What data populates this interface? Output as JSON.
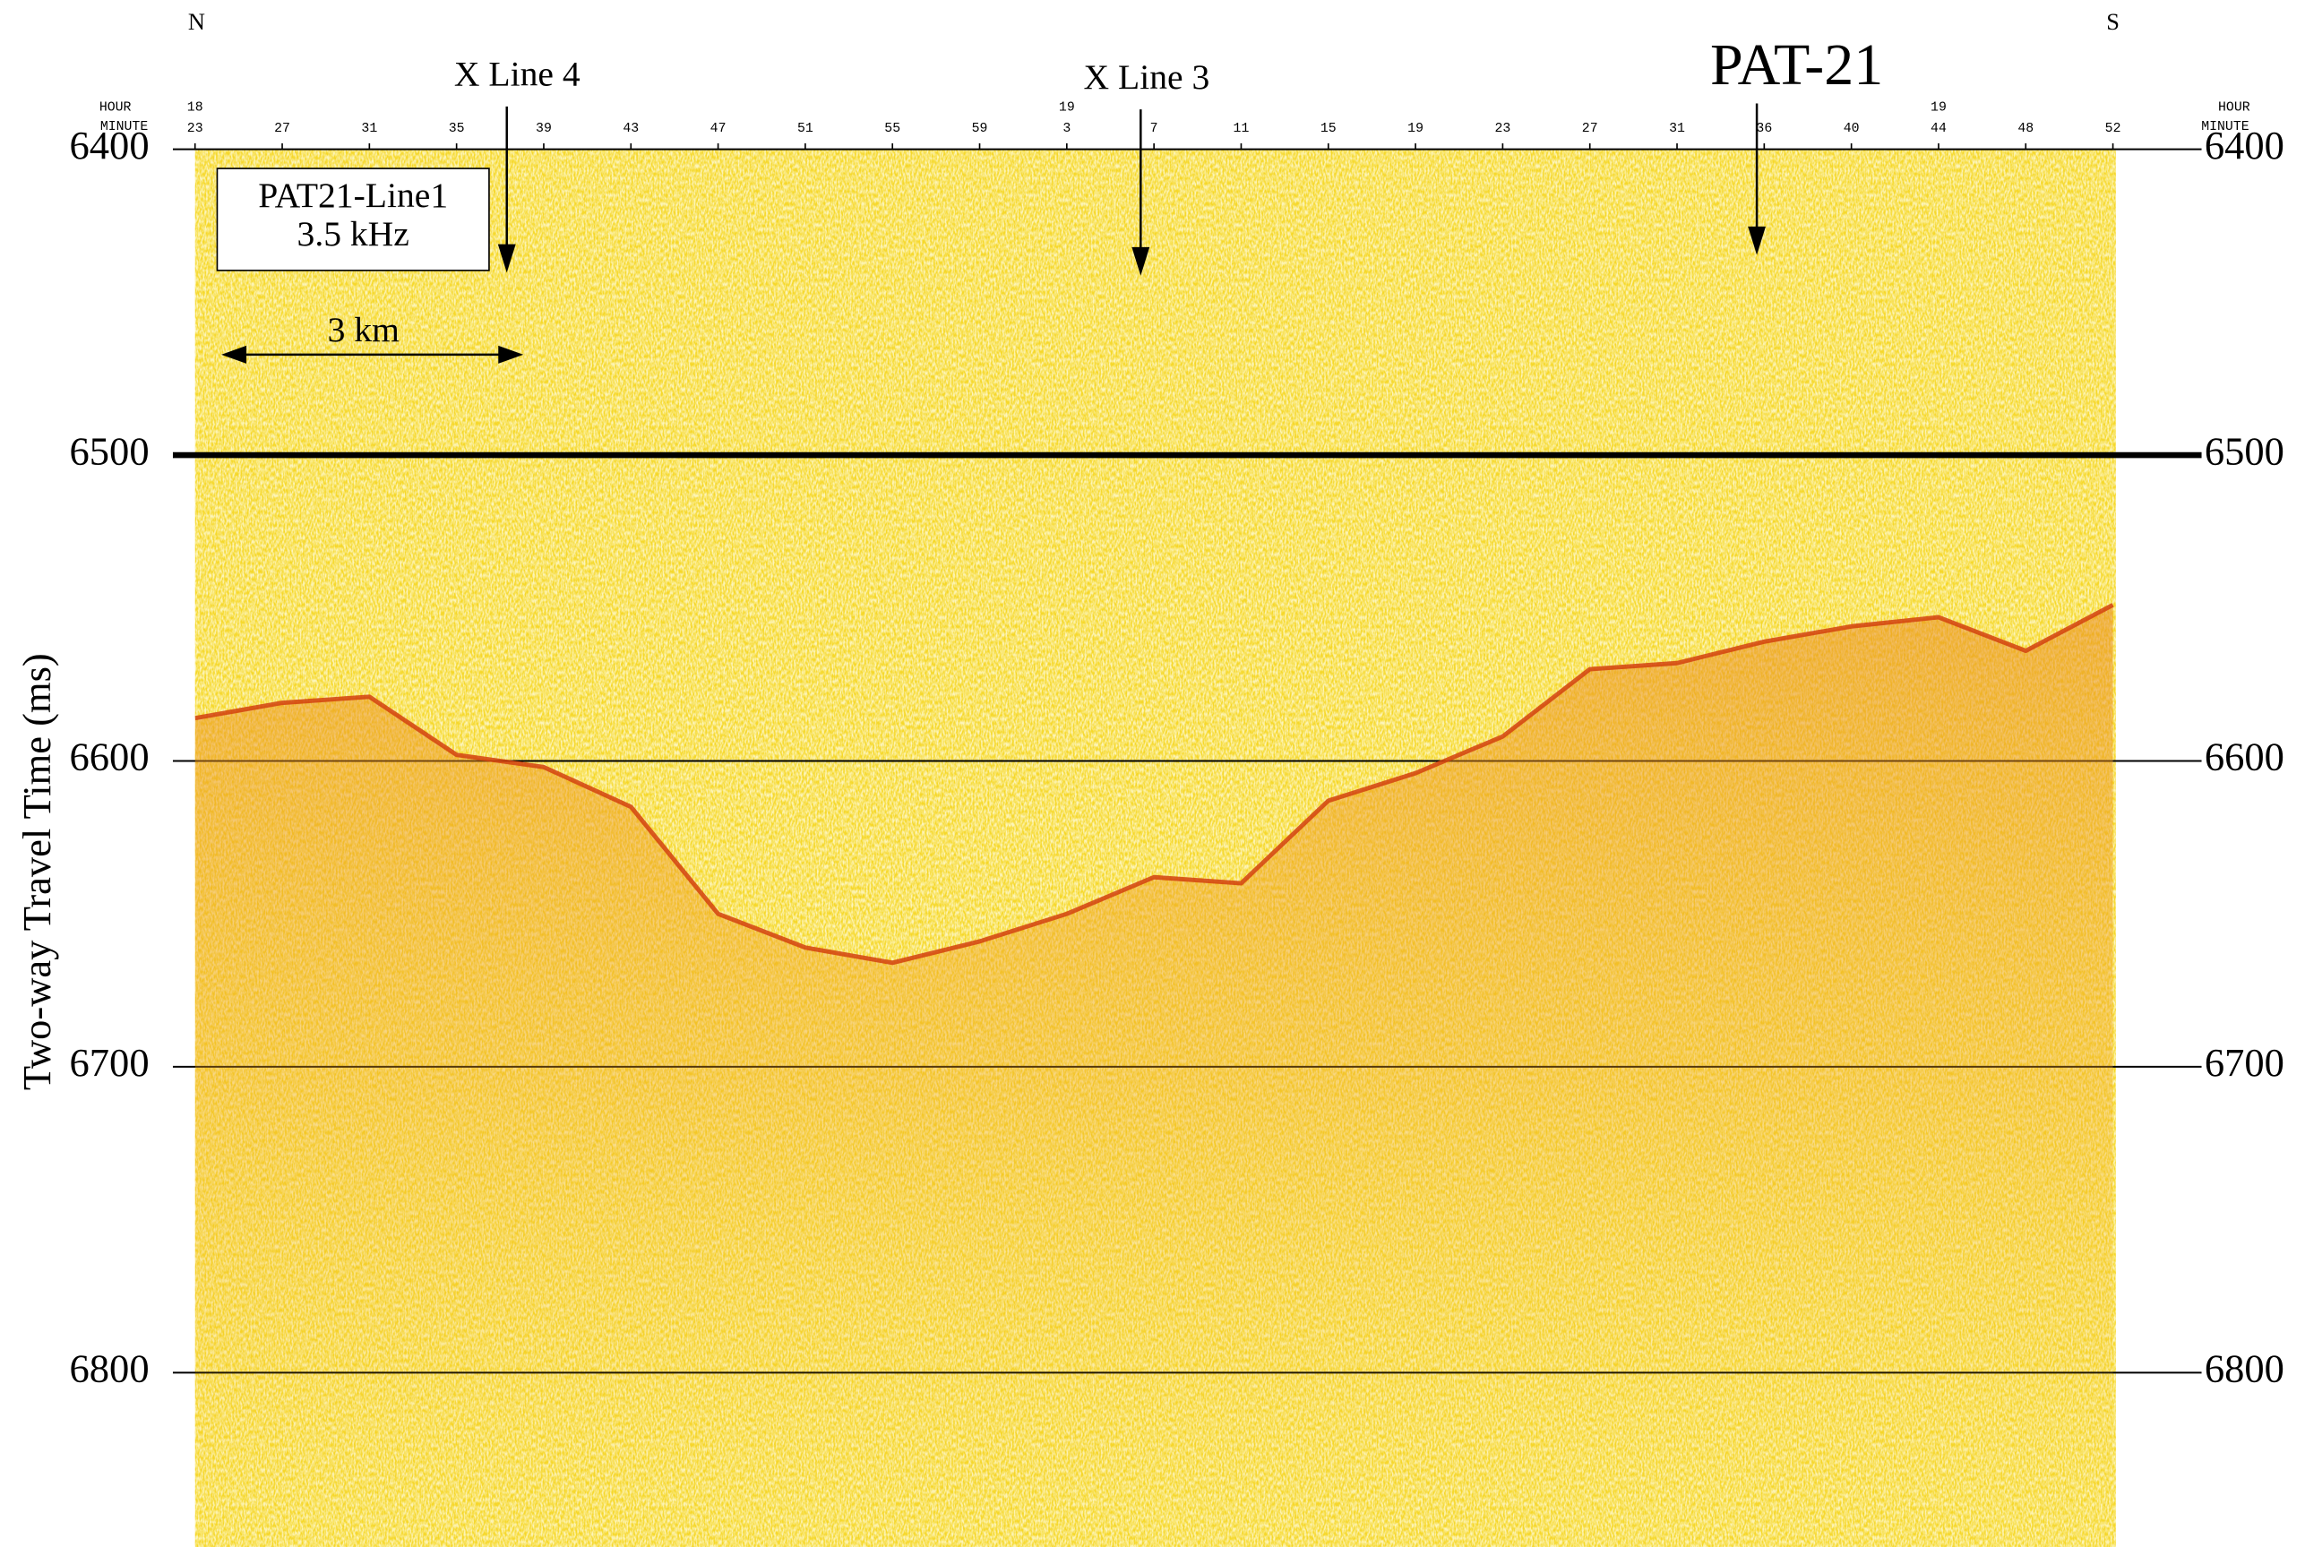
{
  "chart_data": {
    "type": "seismic",
    "ylabel": "Two-way Travel Time (ms)",
    "ylim": [
      6400,
      6857
    ],
    "yticks": [
      6400,
      6500,
      6600,
      6700,
      6800
    ],
    "grid": true,
    "categories": [
      "23",
      "27",
      "31",
      "35",
      "39",
      "43",
      "47",
      "51",
      "55",
      "59",
      "3",
      "7",
      "11",
      "15",
      "19",
      "23",
      "27",
      "31",
      "36",
      "40",
      "44",
      "48",
      "52"
    ],
    "hour_labels": [
      18,
      null,
      null,
      null,
      null,
      null,
      null,
      null,
      null,
      null,
      19,
      null,
      null,
      null,
      null,
      null,
      null,
      null,
      null,
      null,
      19,
      null,
      null
    ],
    "series": [
      {
        "color": "#d2420f",
        "values": [
          6586,
          6581,
          6579,
          6598,
          6602,
          6615,
          6650,
          6661,
          6666,
          6659,
          6650,
          6638,
          6640,
          6613,
          6604,
          6592,
          6570,
          6568,
          6561,
          6556,
          6553,
          6564,
          6549
        ]
      }
    ],
    "annotations": {
      "north": "N",
      "south": "S",
      "hour": "HOUR",
      "minute": "MINUTE",
      "xline4": "X Line 4",
      "xline3": "X Line 3",
      "site": "PAT-21",
      "box_line1": "PAT21-Line1",
      "box_line2": "3.5 kHz",
      "scale": "3 km"
    }
  }
}
